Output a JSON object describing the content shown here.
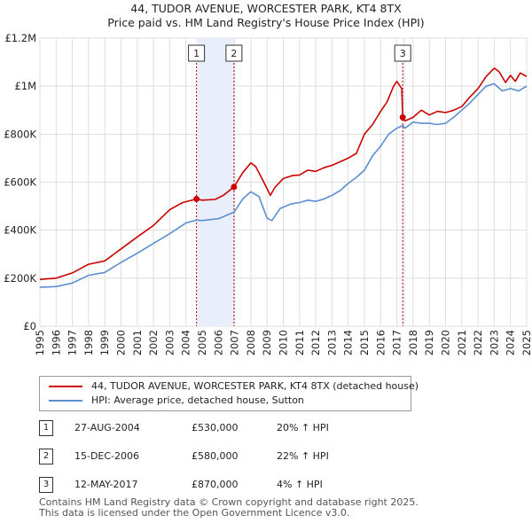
{
  "title": "44, TUDOR AVENUE, WORCESTER PARK, KT4 8TX",
  "subtitle": "Price paid vs. HM Land Registry's House Price Index (HPI)",
  "chart_data": {
    "type": "line",
    "title": "44, TUDOR AVENUE, WORCESTER PARK, KT4 8TX",
    "subtitle": "Price paid vs. HM Land Registry's House Price Index (HPI)",
    "xlabel": "",
    "ylabel": "",
    "xlim": [
      1995,
      2025
    ],
    "ylim": [
      0,
      1200000
    ],
    "grid": true,
    "x_ticks": [
      "1995",
      "1996",
      "1997",
      "1998",
      "1999",
      "2000",
      "2001",
      "2002",
      "2003",
      "2004",
      "2005",
      "2006",
      "2007",
      "2008",
      "2009",
      "2010",
      "2011",
      "2012",
      "2013",
      "2014",
      "2015",
      "2016",
      "2017",
      "2018",
      "2019",
      "2020",
      "2021",
      "2022",
      "2023",
      "2024",
      "2025"
    ],
    "y_ticks": [
      {
        "value": 0,
        "label": "£0"
      },
      {
        "value": 200000,
        "label": "£200K"
      },
      {
        "value": 400000,
        "label": "£400K"
      },
      {
        "value": 600000,
        "label": "£600K"
      },
      {
        "value": 800000,
        "label": "£800K"
      },
      {
        "value": 1000000,
        "label": "£1M"
      },
      {
        "value": 1200000,
        "label": "£1.2M"
      }
    ],
    "colors": {
      "property": "#cc0000",
      "hpi": "#5b8fd0",
      "shade": "#e8eefa",
      "marker_line": "#cc0000"
    },
    "series": [
      {
        "name": "44, TUDOR AVENUE, WORCESTER PARK, KT4 8TX (detached house)",
        "color": "#cc0000",
        "x": [
          1995,
          1996,
          1997,
          1998,
          1999,
          2000,
          2001,
          2002,
          2003,
          2003.8,
          2004.65,
          2005,
          2005.8,
          2006.3,
          2006.96,
          2007.5,
          2008,
          2008.3,
          2008.8,
          2009.2,
          2009.5,
          2010,
          2010.6,
          2011,
          2011.5,
          2012,
          2012.5,
          2013,
          2013.5,
          2014,
          2014.5,
          2015,
          2015.5,
          2016,
          2016.4,
          2016.8,
          2017.0,
          2017.3,
          2017.36,
          2017.5,
          2018,
          2018.5,
          2019,
          2019.5,
          2020,
          2020.5,
          2021,
          2021.5,
          2022,
          2022.5,
          2023,
          2023.3,
          2023.7,
          2024,
          2024.3,
          2024.6,
          2025
        ],
        "values": [
          195000,
          200000,
          222000,
          258000,
          272000,
          322000,
          372000,
          420000,
          485000,
          515000,
          530000,
          525000,
          528000,
          545000,
          580000,
          640000,
          680000,
          665000,
          600000,
          545000,
          580000,
          615000,
          628000,
          630000,
          650000,
          645000,
          660000,
          670000,
          685000,
          700000,
          720000,
          800000,
          840000,
          895000,
          935000,
          1000000,
          1020000,
          990000,
          870000,
          855000,
          870000,
          900000,
          880000,
          895000,
          890000,
          900000,
          915000,
          955000,
          990000,
          1040000,
          1075000,
          1060000,
          1015000,
          1045000,
          1020000,
          1055000,
          1040000
        ]
      },
      {
        "name": "HPI: Average price, detached house, Sutton",
        "color": "#5b8fd0",
        "x": [
          1995,
          1996,
          1997,
          1998,
          1999,
          2000,
          2001,
          2002,
          2003,
          2004,
          2004.65,
          2005,
          2006,
          2006.96,
          2007.5,
          2008,
          2008.5,
          2009,
          2009.3,
          2009.8,
          2010.5,
          2011,
          2011.5,
          2012,
          2012.5,
          2013,
          2013.5,
          2014,
          2014.5,
          2015,
          2015.5,
          2016,
          2016.5,
          2017,
          2017.36,
          2017.5,
          2018,
          2018.5,
          2019,
          2019.5,
          2020,
          2020.5,
          2021,
          2021.5,
          2022,
          2022.5,
          2023,
          2023.5,
          2024,
          2024.5,
          2025
        ],
        "values": [
          162000,
          165000,
          180000,
          212000,
          224000,
          266000,
          304000,
          345000,
          385000,
          430000,
          442000,
          440000,
          448000,
          475000,
          530000,
          560000,
          540000,
          450000,
          440000,
          490000,
          510000,
          515000,
          525000,
          520000,
          530000,
          545000,
          565000,
          595000,
          620000,
          650000,
          710000,
          750000,
          800000,
          825000,
          836000,
          825000,
          850000,
          845000,
          845000,
          840000,
          845000,
          870000,
          900000,
          930000,
          965000,
          1000000,
          1010000,
          980000,
          990000,
          980000,
          1000000
        ]
      }
    ],
    "transactions": [
      {
        "id": "1",
        "x": 2004.65,
        "value": 530000,
        "date": "27-AUG-2004",
        "price": "£530,000",
        "hpi": "20% ↑ HPI"
      },
      {
        "id": "2",
        "x": 2006.96,
        "value": 580000,
        "date": "15-DEC-2006",
        "price": "£580,000",
        "hpi": "22% ↑ HPI"
      },
      {
        "id": "3",
        "x": 2017.36,
        "value": 870000,
        "date": "12-MAY-2017",
        "price": "£870,000",
        "hpi": "4% ↑ HPI"
      }
    ],
    "shaded_ranges": [
      [
        2004.65,
        2006.96
      ],
      [
        2017.36,
        2017.36
      ]
    ]
  },
  "legend": {
    "property_label": "44, TUDOR AVENUE, WORCESTER PARK, KT4 8TX (detached house)",
    "hpi_label": "HPI: Average price, detached house, Sutton"
  },
  "footer": {
    "line1": "Contains HM Land Registry data © Crown copyright and database right 2025.",
    "line2": "This data is licensed under the Open Government Licence v3.0."
  }
}
